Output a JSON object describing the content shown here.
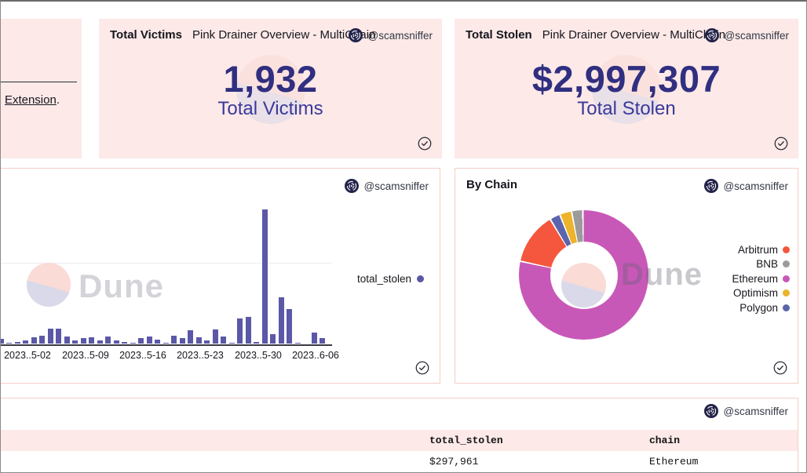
{
  "attribution": {
    "handle": "@scamsniffer"
  },
  "watermark": {
    "text": "Dune"
  },
  "colors": {
    "card_pink_bg": "#fce9e8",
    "card_border_pink": "#f6cdc7",
    "stat_number_indigo": "#302f80",
    "stat_label_indigo": "#3a399b",
    "bar_indigo": "#5b58a7",
    "text_primary": "#16161d",
    "watermark_pink": "#fadbd6",
    "watermark_lavender": "#d9d9e9",
    "scamsniffer_navy": "#23234a"
  },
  "text_card": {
    "link_label": "Extension",
    "trailing_text": "."
  },
  "stat_cards": [
    {
      "title": "Total Victims",
      "subtitle": "Pink Drainer Overview - MultiChain",
      "value": "1,932",
      "label": "Total Victims"
    },
    {
      "title": "Total Stolen",
      "subtitle": "Pink Drainer Overview - MultiChain",
      "value": "$2,997,307",
      "label": "Total Stolen"
    }
  ],
  "chart_data": [
    {
      "type": "bar",
      "title": "",
      "note": "daily total_stolen bar chart; y-axis labels cropped out of viewport, values are relative heights (tallest = 171)",
      "values_unit": "relative",
      "grid": "one horizontal gridline",
      "legend_position": "right",
      "x_tick_labels": [
        "2023..5-02",
        "2023..5-09",
        "2023..5-16",
        "2023..5-23",
        "2023..5-30",
        "2023..6-06"
      ],
      "x_dates": [
        "2023-04-29",
        "2023-04-30",
        "2023-05-01",
        "2023-05-02",
        "2023-05-03",
        "2023-05-04",
        "2023-05-05",
        "2023-05-06",
        "2023-05-07",
        "2023-05-08",
        "2023-05-09",
        "2023-05-10",
        "2023-05-11",
        "2023-05-12",
        "2023-05-13",
        "2023-05-14",
        "2023-05-15",
        "2023-05-16",
        "2023-05-17",
        "2023-05-18",
        "2023-05-19",
        "2023-05-20",
        "2023-05-21",
        "2023-05-22",
        "2023-05-23",
        "2023-05-24",
        "2023-05-25",
        "2023-05-26",
        "2023-05-27",
        "2023-05-28",
        "2023-05-29",
        "2023-05-30",
        "2023-05-31",
        "2023-06-01",
        "2023-06-02",
        "2023-06-03",
        "2023-06-04",
        "2023-06-05",
        "2023-06-06",
        "2023-06-07"
      ],
      "series": [
        {
          "name": "total_stolen",
          "color": "#5b58a7",
          "values": [
            6,
            1.5,
            2.5,
            4,
            8,
            10,
            19,
            19,
            9,
            4,
            7,
            8,
            4.5,
            9,
            4,
            2.5,
            1,
            7,
            9,
            5,
            1.5,
            10,
            7,
            17,
            8,
            4.5,
            18,
            9,
            1.5,
            32,
            34,
            2.5,
            171,
            12,
            59,
            44,
            1,
            0,
            14,
            7
          ]
        }
      ]
    },
    {
      "type": "pie",
      "donut": true,
      "title": "By Chain",
      "legend_position": "right",
      "slices_clockwise_from_top": [
        {
          "label": "Ethereum",
          "pct": 78.6,
          "color": "#c858b8"
        },
        {
          "label": "Arbitrum",
          "pct": 13.0,
          "color": "#f4573d"
        },
        {
          "label": "Polygon",
          "pct": 2.6,
          "color": "#5c64ad"
        },
        {
          "label": "Optimism",
          "pct": 3.0,
          "color": "#ecb32b"
        },
        {
          "label": "BNB",
          "pct": 2.8,
          "color": "#9b9b9b"
        }
      ],
      "legend": [
        {
          "label": "Arbitrum",
          "color": "#f4573d"
        },
        {
          "label": "BNB",
          "color": "#9b9b9b"
        },
        {
          "label": "Ethereum",
          "color": "#c858b8"
        },
        {
          "label": "Optimism",
          "color": "#ecb32b"
        },
        {
          "label": "Polygon",
          "color": "#5c64ad"
        }
      ]
    },
    {
      "type": "table",
      "columns": [
        "total_stolen",
        "chain"
      ],
      "rows": [
        [
          "$297,961",
          "Ethereum"
        ]
      ]
    }
  ]
}
